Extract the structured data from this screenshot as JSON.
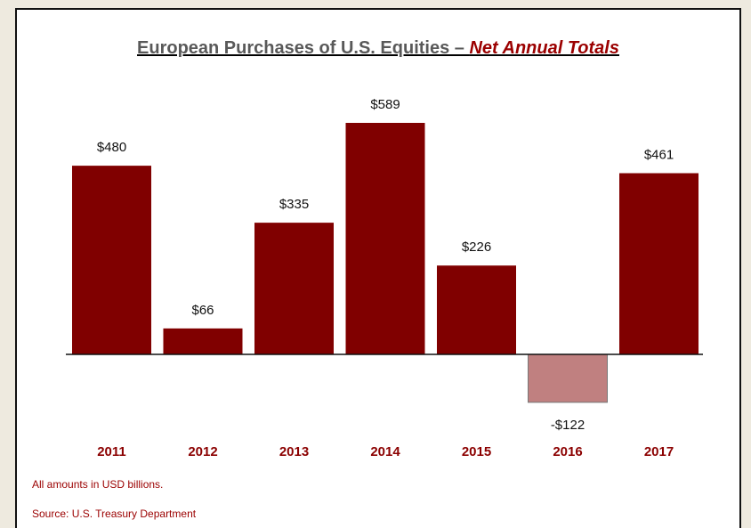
{
  "chart_data": {
    "type": "bar",
    "title": "European Purchases of U.S. Equities – ",
    "title_emphasis": "Net Annual Totals",
    "categories": [
      "2011",
      "2012",
      "2013",
      "2014",
      "2015",
      "2016",
      "2017"
    ],
    "values": [
      480,
      66,
      335,
      589,
      226,
      -122,
      461
    ],
    "value_labels": [
      "$480",
      "$66",
      "$335",
      "$589",
      "$226",
      "-$122",
      "$461"
    ],
    "color": "#800000",
    "negative_color": "#c08080",
    "notes": [
      "All amounts in USD billions.",
      "Source: U.S. Treasury Department"
    ]
  }
}
